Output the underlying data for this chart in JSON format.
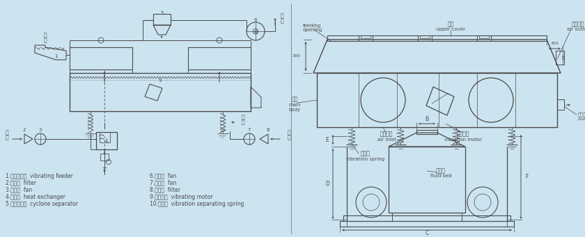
{
  "bg_color": "#cce4f0",
  "line_color": "#4a4a4a",
  "text_color": "#4a4a4a",
  "legend_items_left": [
    "1.振动给料器  vibrating feeder",
    "2.过滤器  filter",
    "3.给风器  fan",
    "4.换热器  heat exchanger",
    "5.旋风除尘器  cyclone separator"
  ],
  "legend_items_right": [
    "6.排风器  fan",
    "7.给风器  fan",
    "8.过滤器  filter",
    "9.振动电机  vibrating motor",
    "10.隔振货  vibration separating spring"
  ]
}
